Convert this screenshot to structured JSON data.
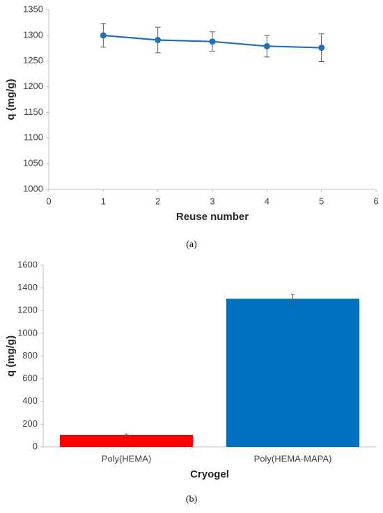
{
  "chart_data": [
    {
      "type": "line",
      "caption": "(a)",
      "x_label": "Reuse number",
      "y_label": "q (mg/g)",
      "x": [
        1,
        2,
        3,
        4,
        5
      ],
      "series": [
        {
          "color": "#1f6fc0",
          "values": [
            1300,
            1291,
            1288,
            1279,
            1276
          ],
          "errors": [
            23,
            25,
            19,
            21,
            27
          ]
        }
      ],
      "xlim": [
        0,
        6
      ],
      "xticks": [
        0,
        1,
        2,
        3,
        4,
        5,
        6
      ],
      "ylim": [
        1000,
        1350
      ],
      "yticks": [
        1000,
        1050,
        1100,
        1150,
        1200,
        1250,
        1300,
        1350
      ]
    },
    {
      "type": "bar",
      "caption": "(b)",
      "x_label": "Cryogel",
      "y_label": "q (mg/g)",
      "categories": [
        "Poly(HEMA)",
        "Poly(HEMA-MAPA)"
      ],
      "values": [
        105,
        1305
      ],
      "errors": [
        8,
        40
      ],
      "colors": [
        "#ff0000",
        "#0070c0"
      ],
      "ylim": [
        0,
        1600
      ],
      "yticks": [
        0,
        200,
        400,
        600,
        800,
        1000,
        1200,
        1400,
        1600
      ]
    }
  ]
}
